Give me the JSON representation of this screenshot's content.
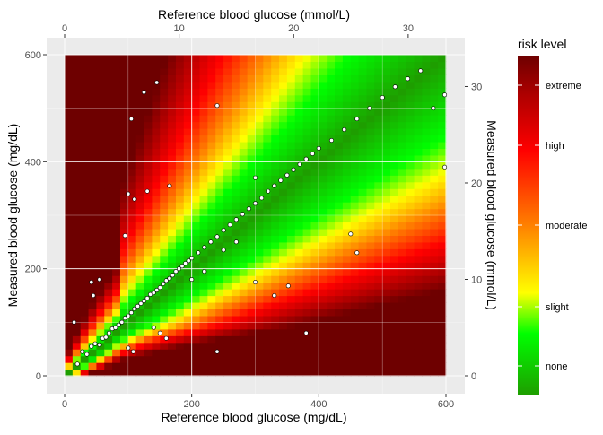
{
  "chart_data": {
    "type": "scatter",
    "title": "",
    "xlabel": "Reference blood glucose (mg/dL)",
    "ylabel": "Measured blood glucose (mg/dL)",
    "xlabel_top": "Reference blood glucose (mmol/L)",
    "ylabel_right": "Measured blood glucose (mmol/L)",
    "xlim": [
      0,
      600
    ],
    "ylim": [
      0,
      600
    ],
    "x_ticks": [
      0,
      200,
      400,
      600
    ],
    "y_ticks": [
      0,
      200,
      400,
      600
    ],
    "x_ticks_top": [
      0,
      10,
      20,
      30
    ],
    "y_ticks_right": [
      0,
      10,
      20,
      30
    ],
    "mmol_per_mgdl": 0.0555,
    "grid": true,
    "background": "heatmap of risk level over reference vs measured glucose",
    "legend": {
      "title": "risk level",
      "position": "right",
      "labels": [
        "extreme",
        "high",
        "moderate",
        "slight",
        "none"
      ],
      "colors": [
        "#6e0000",
        "#ff0000",
        "#ff8000",
        "#ffff00",
        "#00ff00",
        "#1e9e00"
      ]
    },
    "series": [
      {
        "point_fill": "#ffffff",
        "point_stroke": "#000000",
        "note_points": "approximately 2000 points clustered along the identity line plus outliers",
        "points": [
          [
            20,
            22
          ],
          [
            28,
            45
          ],
          [
            35,
            40
          ],
          [
            42,
            55
          ],
          [
            48,
            60
          ],
          [
            55,
            58
          ],
          [
            60,
            70
          ],
          [
            65,
            72
          ],
          [
            70,
            80
          ],
          [
            75,
            88
          ],
          [
            80,
            90
          ],
          [
            85,
            95
          ],
          [
            90,
            100
          ],
          [
            95,
            108
          ],
          [
            100,
            112
          ],
          [
            105,
            118
          ],
          [
            110,
            125
          ],
          [
            115,
            130
          ],
          [
            120,
            135
          ],
          [
            125,
            140
          ],
          [
            130,
            145
          ],
          [
            135,
            152
          ],
          [
            140,
            155
          ],
          [
            145,
            160
          ],
          [
            150,
            165
          ],
          [
            155,
            172
          ],
          [
            160,
            178
          ],
          [
            165,
            182
          ],
          [
            170,
            188
          ],
          [
            175,
            195
          ],
          [
            180,
            200
          ],
          [
            185,
            205
          ],
          [
            190,
            210
          ],
          [
            195,
            215
          ],
          [
            200,
            220
          ],
          [
            210,
            230
          ],
          [
            220,
            240
          ],
          [
            230,
            250
          ],
          [
            240,
            260
          ],
          [
            250,
            272
          ],
          [
            260,
            282
          ],
          [
            270,
            292
          ],
          [
            280,
            302
          ],
          [
            290,
            312
          ],
          [
            300,
            322
          ],
          [
            310,
            332
          ],
          [
            320,
            345
          ],
          [
            330,
            355
          ],
          [
            340,
            365
          ],
          [
            350,
            375
          ],
          [
            360,
            385
          ],
          [
            370,
            395
          ],
          [
            380,
            405
          ],
          [
            390,
            415
          ],
          [
            400,
            425
          ],
          [
            420,
            440
          ],
          [
            440,
            460
          ],
          [
            460,
            480
          ],
          [
            480,
            500
          ],
          [
            500,
            520
          ],
          [
            520,
            540
          ],
          [
            540,
            555
          ],
          [
            560,
            570
          ],
          [
            580,
            500
          ],
          [
            598,
            525
          ],
          [
            598,
            390
          ],
          [
            105,
            480
          ],
          [
            125,
            530
          ],
          [
            145,
            548
          ],
          [
            240,
            505
          ],
          [
            100,
            340
          ],
          [
            110,
            330
          ],
          [
            130,
            345
          ],
          [
            300,
            370
          ],
          [
            95,
            262
          ],
          [
            165,
            355
          ],
          [
            460,
            230
          ],
          [
            450,
            265
          ],
          [
            330,
            150
          ],
          [
            352,
            168
          ],
          [
            300,
            175
          ],
          [
            240,
            45
          ],
          [
            380,
            80
          ],
          [
            108,
            45
          ],
          [
            100,
            52
          ],
          [
            42,
            175
          ],
          [
            55,
            180
          ],
          [
            45,
            150
          ],
          [
            15,
            100
          ],
          [
            140,
            90
          ],
          [
            150,
            80
          ],
          [
            160,
            70
          ],
          [
            200,
            180
          ],
          [
            220,
            195
          ],
          [
            250,
            235
          ],
          [
            270,
            250
          ]
        ]
      }
    ]
  }
}
